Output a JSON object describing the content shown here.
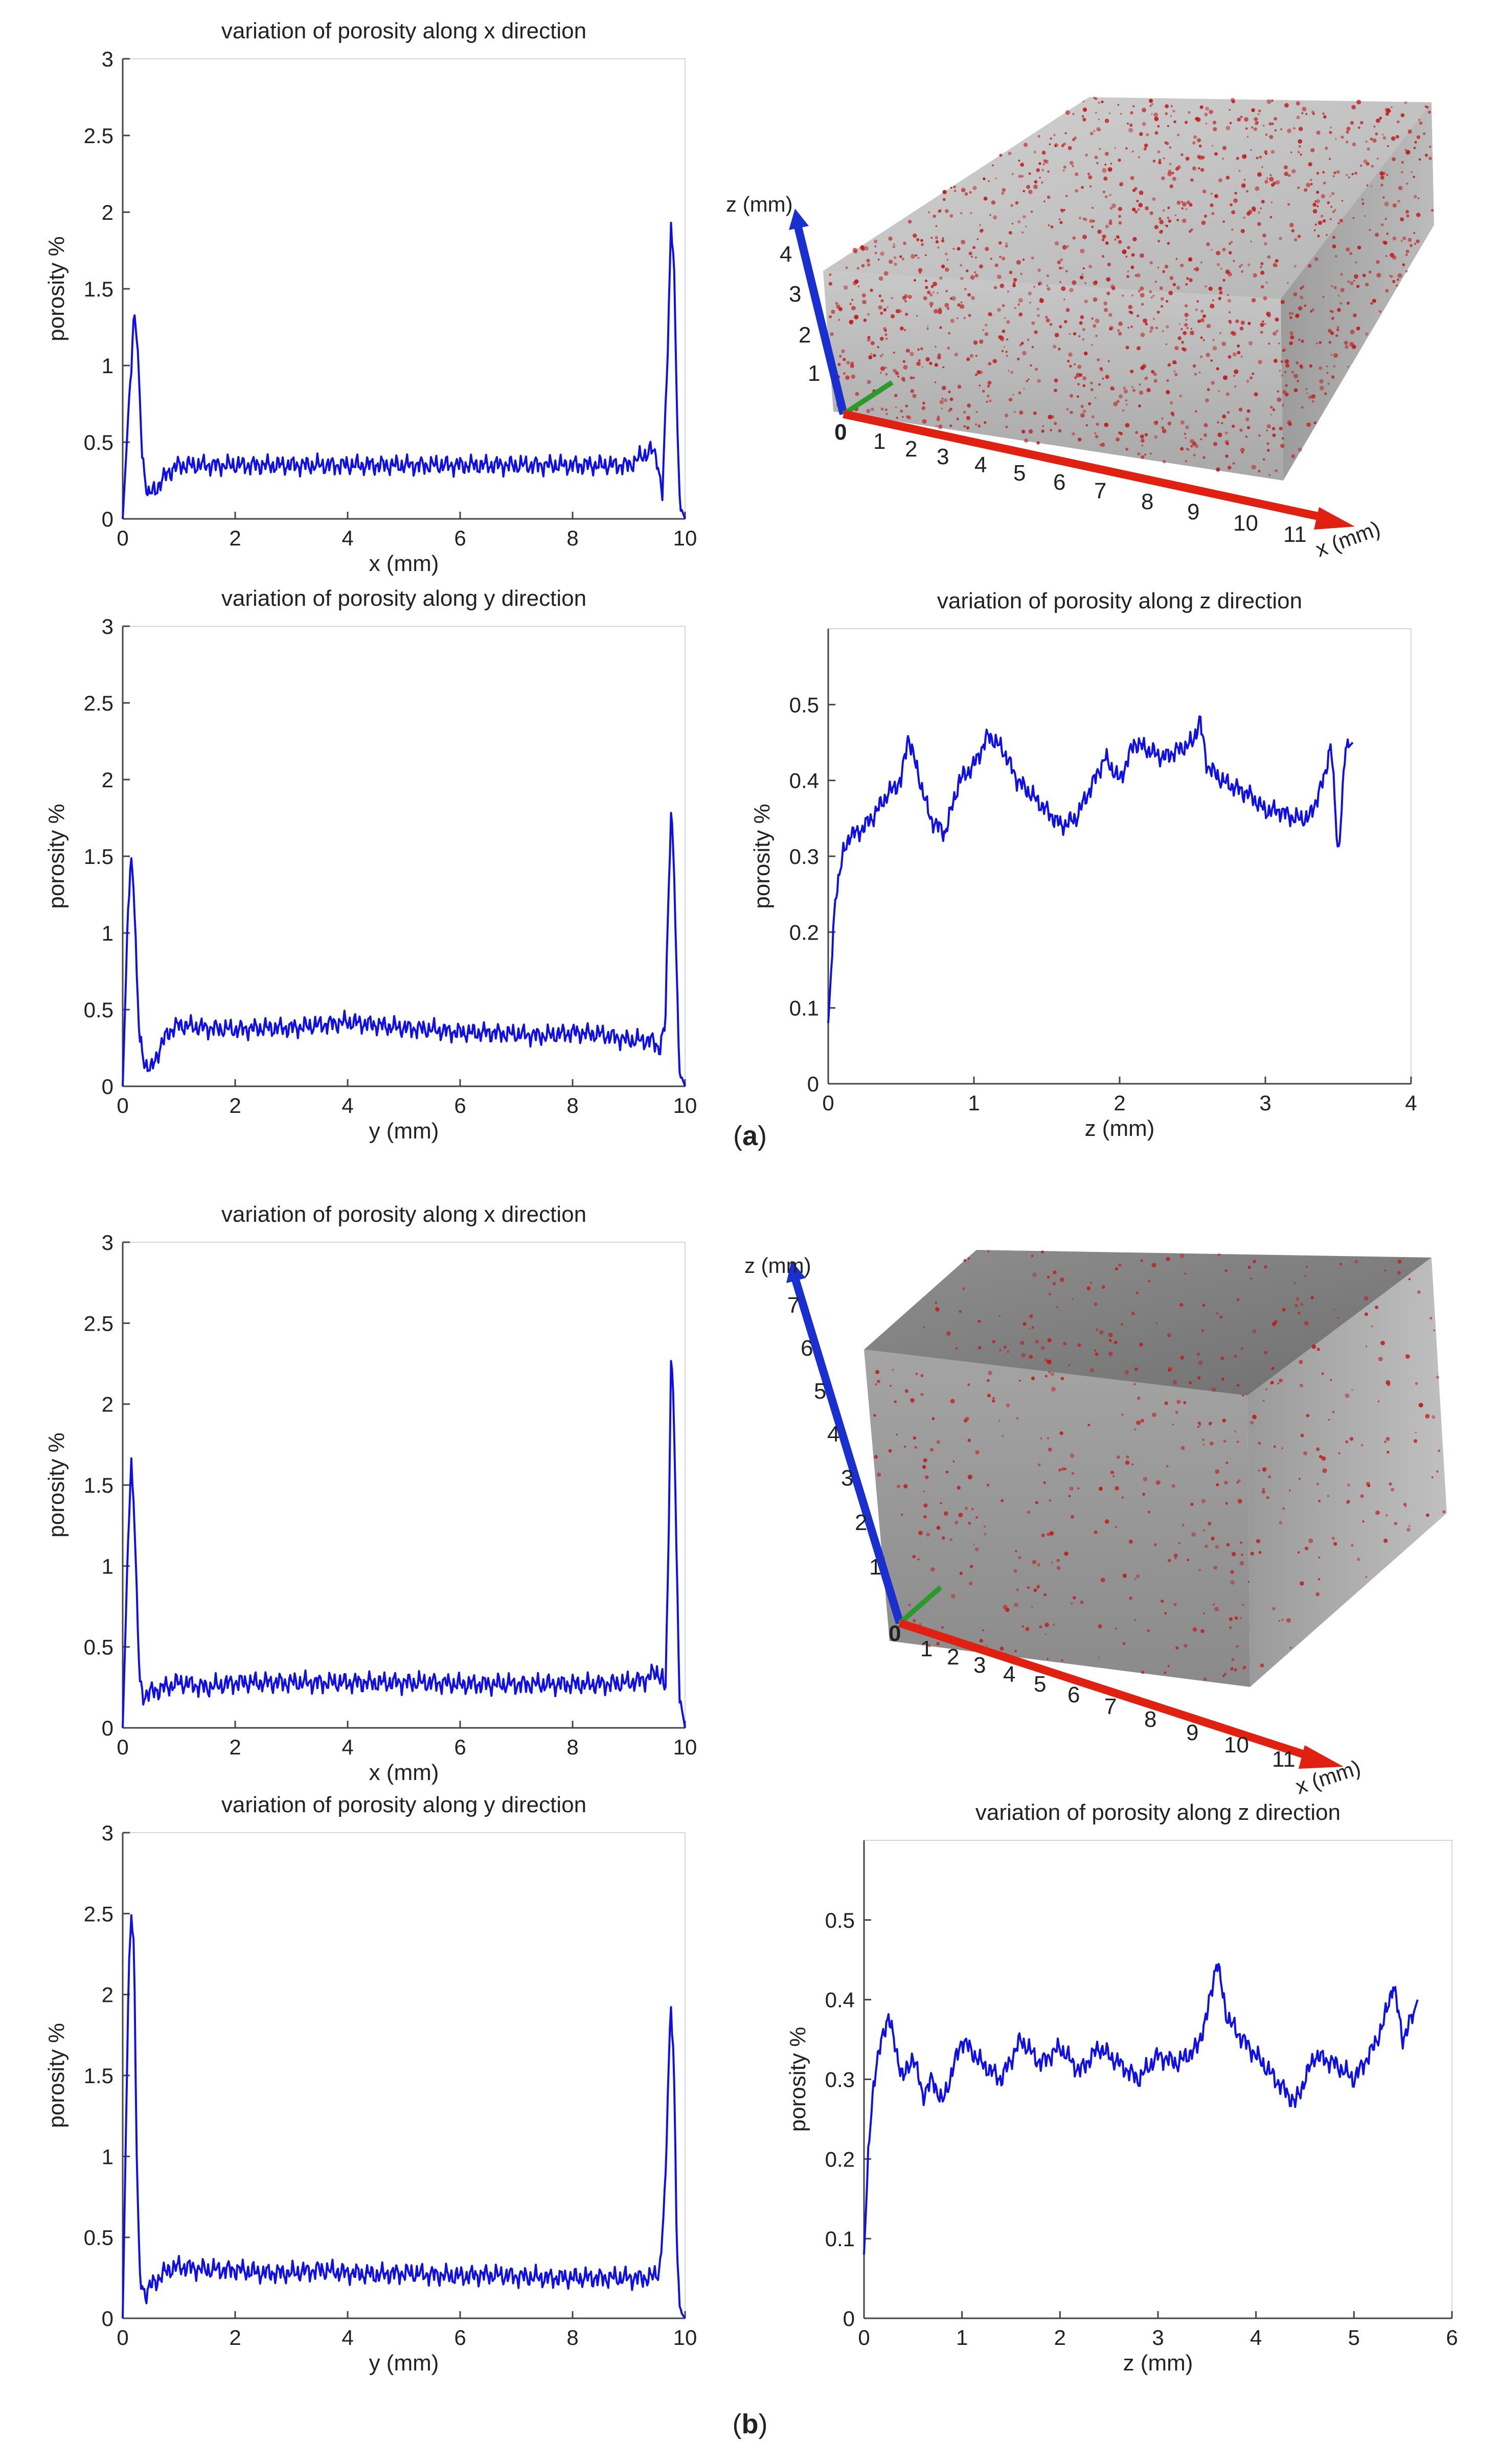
{
  "colors": {
    "series": "#1010e6",
    "axis": "#444444",
    "x_axis_3d": "#e02010",
    "y_axis_3d": "#2a9a2a",
    "z_axis_3d": "#1a2fd0",
    "pores": "#c21a1a",
    "block_a": "#bdbdbd",
    "block_b": "#8a8a8a"
  },
  "panel_labels": [
    {
      "open": "(",
      "letter": "a",
      "close": ")"
    },
    {
      "open": "(",
      "letter": "b",
      "close": ")"
    }
  ],
  "volumes": [
    {
      "z_axis_label": "z (mm)",
      "x_axis_label": "x (mm)",
      "origin_label": "0",
      "z_ticks": [
        "1",
        "2",
        "3",
        "4"
      ],
      "x_ticks": [
        "1",
        "2",
        "3",
        "4",
        "5",
        "6",
        "7",
        "8",
        "9",
        "10",
        "11"
      ]
    },
    {
      "z_axis_label": "z (mm)",
      "x_axis_label": "x (mm)",
      "origin_label": "0",
      "z_ticks": [
        "1",
        "2",
        "3",
        "4",
        "5",
        "6",
        "7"
      ],
      "x_ticks": [
        "1",
        "2",
        "3",
        "4",
        "5",
        "6",
        "7",
        "8",
        "9",
        "10",
        "11"
      ]
    }
  ],
  "chart_data": [
    {
      "id": "a-x",
      "type": "line",
      "title": "variation of porosity along x direction",
      "xlabel": "x (mm)",
      "ylabel": "porosity %",
      "xlim": [
        0,
        10
      ],
      "ylim": [
        0,
        3
      ],
      "xticks": [
        0,
        2,
        4,
        6,
        8,
        10
      ],
      "yticks": [
        0,
        0.5,
        1,
        1.5,
        2,
        2.5,
        3
      ],
      "grid": false,
      "series": [
        {
          "name": "porosity",
          "x": [
            0,
            0.15,
            0.2,
            0.25,
            0.3,
            0.35,
            0.45,
            0.6,
            0.8,
            1.0,
            1.5,
            2.0,
            2.5,
            3.0,
            3.5,
            4.0,
            4.5,
            5.0,
            5.5,
            6.0,
            6.5,
            7.0,
            7.5,
            8.0,
            8.5,
            9.0,
            9.2,
            9.4,
            9.5,
            9.6,
            9.7,
            9.75,
            9.8,
            9.85,
            9.9,
            10.0
          ],
          "y": [
            0,
            1.0,
            1.35,
            1.2,
            0.8,
            0.4,
            0.15,
            0.2,
            0.3,
            0.35,
            0.35,
            0.35,
            0.35,
            0.35,
            0.35,
            0.35,
            0.35,
            0.35,
            0.35,
            0.35,
            0.35,
            0.35,
            0.35,
            0.35,
            0.35,
            0.35,
            0.4,
            0.45,
            0.4,
            0.15,
            1.2,
            1.95,
            1.7,
            0.8,
            0.1,
            0
          ]
        }
      ]
    },
    {
      "id": "a-y",
      "type": "line",
      "title": "variation of porosity along y direction",
      "xlabel": "y (mm)",
      "ylabel": "porosity %",
      "xlim": [
        0,
        10
      ],
      "ylim": [
        0,
        3
      ],
      "xticks": [
        0,
        2,
        4,
        6,
        8,
        10
      ],
      "yticks": [
        0,
        0.5,
        1,
        1.5,
        2,
        2.5,
        3
      ],
      "grid": false,
      "series": [
        {
          "name": "porosity",
          "x": [
            0,
            0.1,
            0.15,
            0.2,
            0.25,
            0.3,
            0.4,
            0.5,
            0.6,
            0.8,
            1.0,
            1.5,
            2.0,
            2.5,
            3.0,
            3.5,
            4.0,
            4.5,
            5.0,
            5.5,
            6.0,
            6.5,
            7.0,
            7.5,
            8.0,
            8.5,
            9.0,
            9.4,
            9.55,
            9.65,
            9.7,
            9.75,
            9.8,
            9.85,
            9.9,
            10.0
          ],
          "y": [
            0,
            1.2,
            1.5,
            1.3,
            0.7,
            0.3,
            0.15,
            0.1,
            0.2,
            0.35,
            0.4,
            0.38,
            0.37,
            0.38,
            0.38,
            0.4,
            0.42,
            0.4,
            0.38,
            0.37,
            0.35,
            0.35,
            0.34,
            0.33,
            0.35,
            0.34,
            0.3,
            0.3,
            0.25,
            0.4,
            1.2,
            1.8,
            1.5,
            0.7,
            0.1,
            0
          ]
        }
      ]
    },
    {
      "id": "a-z",
      "type": "line",
      "title": "variation of porosity along z direction",
      "xlabel": "z (mm)",
      "ylabel": "porosity %",
      "xlim": [
        0,
        4
      ],
      "ylim": [
        0,
        0.6
      ],
      "xticks": [
        0,
        1,
        2,
        3,
        4
      ],
      "yticks": [
        0,
        0.1,
        0.2,
        0.3,
        0.4,
        0.5
      ],
      "grid": false,
      "series": [
        {
          "name": "porosity",
          "x": [
            0,
            0.05,
            0.1,
            0.15,
            0.2,
            0.3,
            0.4,
            0.5,
            0.55,
            0.6,
            0.7,
            0.8,
            0.9,
            1.0,
            1.1,
            1.2,
            1.3,
            1.4,
            1.5,
            1.6,
            1.7,
            1.8,
            1.9,
            2.0,
            2.1,
            2.2,
            2.3,
            2.4,
            2.5,
            2.55,
            2.6,
            2.7,
            2.8,
            2.9,
            3.0,
            3.1,
            3.2,
            3.3,
            3.4,
            3.45,
            3.5,
            3.55,
            3.6
          ],
          "y": [
            0.08,
            0.25,
            0.3,
            0.33,
            0.33,
            0.35,
            0.38,
            0.4,
            0.46,
            0.42,
            0.35,
            0.33,
            0.4,
            0.42,
            0.46,
            0.44,
            0.4,
            0.38,
            0.36,
            0.34,
            0.35,
            0.39,
            0.43,
            0.4,
            0.45,
            0.44,
            0.43,
            0.44,
            0.45,
            0.48,
            0.42,
            0.4,
            0.39,
            0.38,
            0.36,
            0.36,
            0.35,
            0.35,
            0.4,
            0.45,
            0.3,
            0.44,
            0.45
          ]
        }
      ]
    },
    {
      "id": "b-x",
      "type": "line",
      "title": "variation of porosity along x direction",
      "xlabel": "x (mm)",
      "ylabel": "porosity %",
      "xlim": [
        0,
        10
      ],
      "ylim": [
        0,
        3
      ],
      "xticks": [
        0,
        2,
        4,
        6,
        8,
        10
      ],
      "yticks": [
        0,
        0.5,
        1,
        1.5,
        2,
        2.5,
        3
      ],
      "grid": false,
      "series": [
        {
          "name": "porosity",
          "x": [
            0,
            0.1,
            0.15,
            0.2,
            0.25,
            0.3,
            0.35,
            0.5,
            1.0,
            1.5,
            2.0,
            2.5,
            3.0,
            3.5,
            4.0,
            4.5,
            5.0,
            5.5,
            6.0,
            6.5,
            7.0,
            7.5,
            8.0,
            8.5,
            9.0,
            9.3,
            9.5,
            9.6,
            9.65,
            9.7,
            9.75,
            9.8,
            9.85,
            9.9,
            10.0
          ],
          "y": [
            0,
            1.2,
            1.65,
            1.4,
            0.8,
            0.3,
            0.2,
            0.22,
            0.28,
            0.25,
            0.28,
            0.28,
            0.28,
            0.28,
            0.28,
            0.28,
            0.28,
            0.28,
            0.27,
            0.27,
            0.27,
            0.27,
            0.27,
            0.27,
            0.28,
            0.3,
            0.35,
            0.3,
            0.2,
            1.0,
            2.3,
            2.0,
            1.0,
            0.2,
            0
          ]
        }
      ]
    },
    {
      "id": "b-y",
      "type": "line",
      "title": "variation of porosity along y direction",
      "xlabel": "y (mm)",
      "ylabel": "porosity %",
      "xlim": [
        0,
        10
      ],
      "ylim": [
        0,
        3
      ],
      "xticks": [
        0,
        2,
        4,
        6,
        8,
        10
      ],
      "yticks": [
        0,
        0.5,
        1,
        1.5,
        2,
        2.5,
        3
      ],
      "grid": false,
      "series": [
        {
          "name": "porosity",
          "x": [
            0,
            0.1,
            0.15,
            0.2,
            0.25,
            0.3,
            0.4,
            0.5,
            0.8,
            1.0,
            1.5,
            2.0,
            2.5,
            3.0,
            3.5,
            4.0,
            4.5,
            5.0,
            5.5,
            6.0,
            6.5,
            7.0,
            7.5,
            8.0,
            8.5,
            9.0,
            9.4,
            9.55,
            9.65,
            9.7,
            9.75,
            9.8,
            9.85,
            9.9,
            10.0
          ],
          "y": [
            0,
            2.0,
            2.55,
            2.3,
            1.0,
            0.25,
            0.15,
            0.2,
            0.3,
            0.32,
            0.3,
            0.3,
            0.28,
            0.28,
            0.3,
            0.28,
            0.27,
            0.28,
            0.27,
            0.26,
            0.27,
            0.26,
            0.25,
            0.25,
            0.25,
            0.25,
            0.25,
            0.3,
            0.8,
            1.5,
            1.95,
            1.6,
            0.5,
            0.05,
            0
          ]
        }
      ]
    },
    {
      "id": "b-z",
      "type": "line",
      "title": "variation of porosity along z direction",
      "xlabel": "z (mm)",
      "ylabel": "porosity %",
      "xlim": [
        0,
        6
      ],
      "ylim": [
        0,
        0.6
      ],
      "xticks": [
        0,
        1,
        2,
        3,
        4,
        5,
        6
      ],
      "yticks": [
        0,
        0.1,
        0.2,
        0.3,
        0.4,
        0.5
      ],
      "grid": false,
      "series": [
        {
          "name": "porosity",
          "x": [
            0,
            0.05,
            0.1,
            0.15,
            0.2,
            0.25,
            0.3,
            0.4,
            0.5,
            0.6,
            0.7,
            0.8,
            1.0,
            1.2,
            1.4,
            1.6,
            1.8,
            2.0,
            2.2,
            2.4,
            2.6,
            2.8,
            3.0,
            3.2,
            3.4,
            3.5,
            3.6,
            3.7,
            3.8,
            4.0,
            4.2,
            4.4,
            4.5,
            4.6,
            4.8,
            5.0,
            5.2,
            5.3,
            5.4,
            5.5,
            5.6,
            5.65
          ],
          "y": [
            0.08,
            0.22,
            0.3,
            0.33,
            0.36,
            0.38,
            0.35,
            0.3,
            0.33,
            0.28,
            0.3,
            0.27,
            0.35,
            0.32,
            0.3,
            0.35,
            0.32,
            0.34,
            0.31,
            0.34,
            0.32,
            0.3,
            0.33,
            0.32,
            0.34,
            0.38,
            0.45,
            0.38,
            0.36,
            0.33,
            0.3,
            0.27,
            0.3,
            0.33,
            0.32,
            0.3,
            0.34,
            0.37,
            0.42,
            0.35,
            0.38,
            0.4
          ]
        }
      ]
    }
  ]
}
